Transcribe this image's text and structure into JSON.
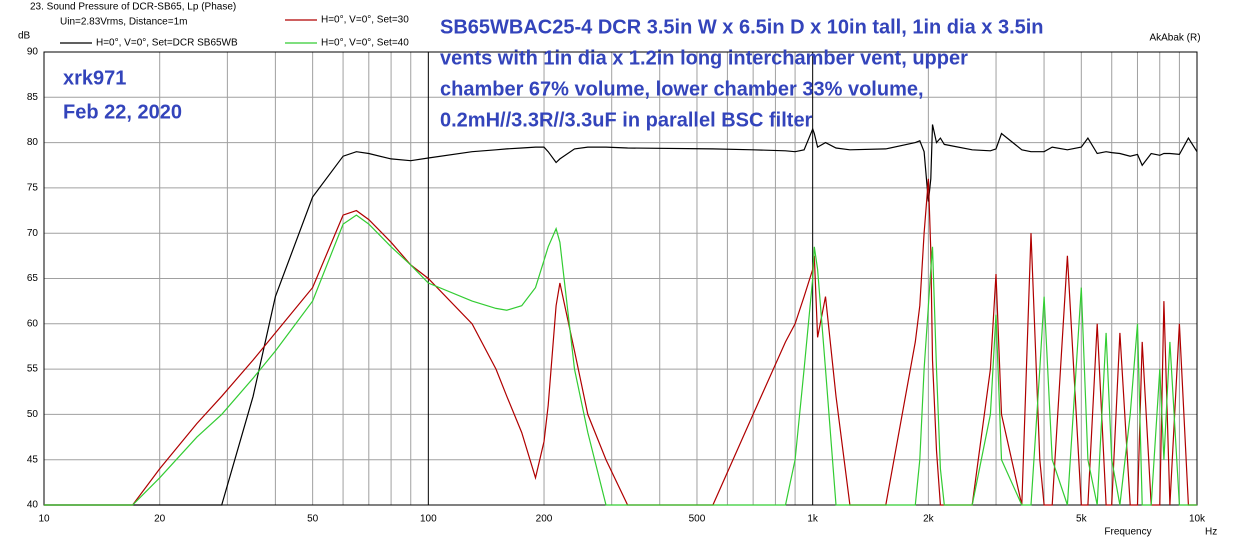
{
  "chart_data": {
    "type": "line",
    "title": "23. Sound Pressure of DCR-SB65, Lp (Phase)",
    "subtitle": "Uin=2.83Vrms, Distance=1m",
    "y_label": "dB",
    "x_label": "Frequency",
    "x_unit": "Hz",
    "software": "AkAbak (R)",
    "author": "xrk971",
    "date": "Feb 22, 2020",
    "annotation": [
      "SB65WBAC25-4  DCR  3.5in W x 6.5in D x 10in tall, 1in dia x 3.5in",
      "vents with 1in dia x 1.2in long interchamber vent, upper",
      "chamber 67% volume, lower chamber 33% volume,",
      "0.2mH//3.3R//3.3uF in parallel BSC filter"
    ],
    "log_x": true,
    "grid": true,
    "xlim": [
      10,
      10000
    ],
    "ylim": [
      40,
      90
    ],
    "xticks": [
      10,
      20,
      50,
      100,
      200,
      500,
      {
        "value": 1000,
        "label": "1k"
      },
      {
        "value": 2000,
        "label": "2k"
      },
      {
        "value": 5000,
        "label": "5k"
      },
      {
        "value": 10000,
        "label": "10k"
      }
    ],
    "x_minor_grid": [
      30,
      40,
      60,
      70,
      80,
      90,
      300,
      400,
      600,
      700,
      800,
      900,
      3000,
      4000,
      6000,
      7000,
      8000,
      9000
    ],
    "yticks": [
      40,
      45,
      50,
      55,
      60,
      65,
      70,
      75,
      80,
      85,
      90
    ],
    "x": [
      10,
      17,
      20,
      25,
      29,
      35,
      40,
      50,
      60,
      65,
      70,
      80,
      90,
      100,
      130,
      150,
      160,
      175,
      190,
      200,
      205,
      215,
      220,
      240,
      260,
      290,
      330,
      550,
      700,
      850,
      900,
      950,
      1000,
      1010,
      1030,
      1080,
      1150,
      1250,
      1550,
      1850,
      1900,
      1950,
      2000,
      2030,
      2050,
      2100,
      2150,
      2200,
      2600,
      2900,
      3000,
      3100,
      3500,
      3700,
      3900,
      4000,
      4200,
      4600,
      5000,
      5200,
      5500,
      5800,
      6000,
      6300,
      6700,
      7000,
      7200,
      7600,
      8000,
      8200,
      8500,
      9000,
      9500,
      10000
    ],
    "series": [
      {
        "name": "H=0°, V=0°, Set=DCR SB65WB",
        "color": "#000000",
        "values": [
          40,
          40,
          40,
          40,
          40,
          52,
          63,
          74,
          78.5,
          79,
          78.8,
          78.2,
          78,
          78.3,
          79,
          79.2,
          79.3,
          79.4,
          79.5,
          79.5,
          79,
          77.8,
          78.2,
          79.3,
          79.5,
          79.5,
          79.4,
          79.3,
          79.2,
          79.1,
          79,
          79.2,
          81.5,
          81,
          79.5,
          80,
          79.4,
          79.2,
          79.3,
          80,
          80.2,
          79,
          73.5,
          76,
          82,
          80,
          80.5,
          79.8,
          79.2,
          79.1,
          79.3,
          81,
          79.2,
          79,
          79,
          79,
          79.5,
          79.2,
          79.5,
          80.5,
          78.8,
          79,
          78.9,
          78.8,
          78.5,
          78.7,
          77.5,
          78.8,
          78.6,
          78.8,
          78.8,
          78.7,
          80.5,
          79
        ]
      },
      {
        "name": "H=0°, V=0°, Set=30",
        "color": "#b00000",
        "values": [
          40,
          40,
          44,
          49,
          52,
          56,
          59,
          64,
          72,
          72.5,
          71.5,
          69,
          66.5,
          65,
          60,
          55,
          52,
          48,
          43,
          47,
          51,
          62,
          64.5,
          57,
          50,
          45,
          40,
          40,
          50,
          58,
          60,
          63,
          66,
          67.5,
          58.5,
          63,
          52,
          40,
          40,
          58,
          62,
          70,
          76,
          68,
          56,
          46,
          40,
          40,
          40,
          55,
          65.5,
          50,
          40,
          70,
          45,
          40,
          40,
          67.5,
          40,
          40,
          60,
          40,
          40,
          59,
          40,
          40,
          58,
          40,
          40,
          62.5,
          40,
          60,
          40,
          40
        ]
      },
      {
        "name": "H=0°, V=0°, Set=40",
        "color": "#33cc33",
        "values": [
          40,
          40,
          43,
          47.5,
          50,
          54,
          57,
          62.5,
          71,
          72,
          71,
          68.5,
          66.5,
          64.5,
          62.5,
          61.7,
          61.5,
          62,
          64,
          67,
          68.5,
          70.5,
          69,
          55,
          48,
          40,
          40,
          40,
          40,
          40,
          45,
          55,
          65,
          68.5,
          66,
          55,
          40,
          40,
          40,
          40,
          45,
          55,
          62,
          66,
          68.5,
          55,
          44,
          40,
          40,
          50,
          61,
          45,
          40,
          40,
          55,
          63,
          45,
          40,
          64,
          45,
          40,
          59,
          45,
          40,
          50,
          60,
          40,
          40,
          55,
          45,
          58,
          40,
          40,
          40
        ]
      }
    ]
  }
}
